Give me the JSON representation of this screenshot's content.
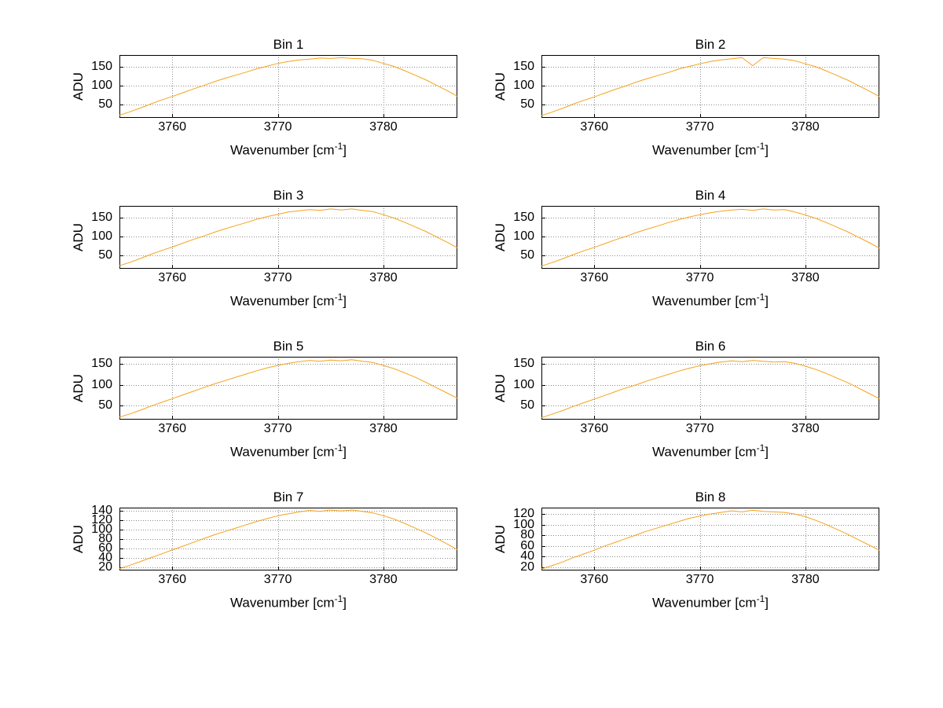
{
  "figure": {
    "background": "#ffffff",
    "curve_color": "#F5A21B",
    "axis_color": "#000000",
    "grid_color": "#8a8a8a",
    "ylabel": "ADU",
    "xlabel_prefix": "Wavenumber [cm",
    "xlabel_sup": "-1",
    "xlabel_suffix": "]"
  },
  "chart_data": [
    {
      "type": "line",
      "title": "Bin 1",
      "xlabel": "Wavenumber [cm⁻¹]",
      "ylabel": "ADU",
      "xlim": [
        3755,
        3787
      ],
      "ylim": [
        15,
        180
      ],
      "xticks": [
        3760,
        3770,
        3780
      ],
      "yticks": [
        50,
        100,
        150
      ],
      "grid": true,
      "x": [
        3755,
        3756,
        3757,
        3758,
        3759,
        3760,
        3761,
        3762,
        3763,
        3764,
        3765,
        3766,
        3767,
        3768,
        3769,
        3770,
        3771,
        3772,
        3773,
        3774,
        3775,
        3776,
        3777,
        3778,
        3779,
        3780,
        3781,
        3782,
        3783,
        3784,
        3785,
        3786,
        3787
      ],
      "values": [
        22,
        31,
        41,
        52,
        62,
        71,
        81,
        91,
        100,
        110,
        119,
        127,
        135,
        144,
        151,
        158,
        163,
        167,
        169,
        172,
        171,
        173,
        171,
        170,
        166,
        158,
        150,
        139,
        127,
        115,
        101,
        87,
        72
      ]
    },
    {
      "type": "line",
      "title": "Bin 2",
      "xlabel": "Wavenumber [cm⁻¹]",
      "ylabel": "ADU",
      "xlim": [
        3755,
        3787
      ],
      "ylim": [
        15,
        180
      ],
      "xticks": [
        3760,
        3770,
        3780
      ],
      "yticks": [
        50,
        100,
        150
      ],
      "grid": true,
      "x": [
        3755,
        3756,
        3757,
        3758,
        3759,
        3760,
        3761,
        3762,
        3763,
        3764,
        3765,
        3766,
        3767,
        3768,
        3769,
        3770,
        3771,
        3772,
        3773,
        3774,
        3775,
        3776,
        3777,
        3778,
        3779,
        3780,
        3781,
        3782,
        3783,
        3784,
        3785,
        3786,
        3787
      ],
      "values": [
        21,
        30,
        40,
        51,
        61,
        70,
        80,
        90,
        99,
        109,
        118,
        126,
        134,
        143,
        150,
        157,
        163,
        167,
        170,
        173,
        152,
        173,
        171,
        169,
        165,
        157,
        149,
        138,
        126,
        114,
        100,
        86,
        71
      ]
    },
    {
      "type": "line",
      "title": "Bin 3",
      "xlabel": "Wavenumber [cm⁻¹]",
      "ylabel": "ADU",
      "xlim": [
        3755,
        3787
      ],
      "ylim": [
        15,
        180
      ],
      "xticks": [
        3760,
        3770,
        3780
      ],
      "yticks": [
        50,
        100,
        150
      ],
      "grid": true,
      "x": [
        3755,
        3756,
        3757,
        3758,
        3759,
        3760,
        3761,
        3762,
        3763,
        3764,
        3765,
        3766,
        3767,
        3768,
        3769,
        3770,
        3771,
        3772,
        3773,
        3774,
        3775,
        3776,
        3777,
        3778,
        3779,
        3780,
        3781,
        3782,
        3783,
        3784,
        3785,
        3786,
        3787
      ],
      "values": [
        23,
        32,
        42,
        53,
        63,
        72,
        82,
        92,
        101,
        111,
        120,
        128,
        136,
        145,
        152,
        158,
        164,
        167,
        170,
        168,
        172,
        169,
        172,
        168,
        165,
        157,
        148,
        137,
        125,
        113,
        99,
        85,
        70
      ]
    },
    {
      "type": "line",
      "title": "Bin 4",
      "xlabel": "Wavenumber [cm⁻¹]",
      "ylabel": "ADU",
      "xlim": [
        3755,
        3787
      ],
      "ylim": [
        15,
        180
      ],
      "xticks": [
        3760,
        3770,
        3780
      ],
      "yticks": [
        50,
        100,
        150
      ],
      "grid": true,
      "x": [
        3755,
        3756,
        3757,
        3758,
        3759,
        3760,
        3761,
        3762,
        3763,
        3764,
        3765,
        3766,
        3767,
        3768,
        3769,
        3770,
        3771,
        3772,
        3773,
        3774,
        3775,
        3776,
        3777,
        3778,
        3779,
        3780,
        3781,
        3782,
        3783,
        3784,
        3785,
        3786,
        3787
      ],
      "values": [
        22,
        31,
        41,
        52,
        62,
        71,
        81,
        91,
        100,
        110,
        119,
        127,
        136,
        144,
        151,
        157,
        162,
        166,
        169,
        171,
        168,
        172,
        169,
        170,
        164,
        156,
        147,
        136,
        124,
        112,
        98,
        84,
        69
      ]
    },
    {
      "type": "line",
      "title": "Bin 5",
      "xlabel": "Wavenumber [cm⁻¹]",
      "ylabel": "ADU",
      "xlim": [
        3755,
        3787
      ],
      "ylim": [
        15,
        168
      ],
      "xticks": [
        3760,
        3770,
        3780
      ],
      "yticks": [
        50,
        100,
        150
      ],
      "grid": true,
      "x": [
        3755,
        3756,
        3757,
        3758,
        3759,
        3760,
        3761,
        3762,
        3763,
        3764,
        3765,
        3766,
        3767,
        3768,
        3769,
        3770,
        3771,
        3772,
        3773,
        3774,
        3775,
        3776,
        3777,
        3778,
        3779,
        3780,
        3781,
        3782,
        3783,
        3784,
        3785,
        3786,
        3787
      ],
      "values": [
        21,
        29,
        38,
        48,
        57,
        66,
        75,
        84,
        93,
        102,
        110,
        118,
        126,
        134,
        141,
        147,
        152,
        156,
        159,
        157,
        160,
        158,
        161,
        157,
        154,
        147,
        139,
        129,
        118,
        106,
        93,
        80,
        67
      ]
    },
    {
      "type": "line",
      "title": "Bin 6",
      "xlabel": "Wavenumber [cm⁻¹]",
      "ylabel": "ADU",
      "xlim": [
        3755,
        3787
      ],
      "ylim": [
        15,
        168
      ],
      "xticks": [
        3760,
        3770,
        3780
      ],
      "yticks": [
        50,
        100,
        150
      ],
      "grid": true,
      "x": [
        3755,
        3756,
        3757,
        3758,
        3759,
        3760,
        3761,
        3762,
        3763,
        3764,
        3765,
        3766,
        3767,
        3768,
        3769,
        3770,
        3771,
        3772,
        3773,
        3774,
        3775,
        3776,
        3777,
        3778,
        3779,
        3780,
        3781,
        3782,
        3783,
        3784,
        3785,
        3786,
        3787
      ],
      "values": [
        20,
        28,
        37,
        47,
        56,
        65,
        74,
        83,
        92,
        100,
        109,
        117,
        125,
        133,
        140,
        146,
        151,
        155,
        158,
        156,
        159,
        157,
        155,
        156,
        152,
        145,
        137,
        127,
        116,
        105,
        92,
        79,
        66
      ]
    },
    {
      "type": "line",
      "title": "Bin 7",
      "xlabel": "Wavenumber [cm⁻¹]",
      "ylabel": "ADU",
      "xlim": [
        3755,
        3787
      ],
      "ylim": [
        14,
        146
      ],
      "xticks": [
        3760,
        3770,
        3780
      ],
      "yticks": [
        20,
        40,
        60,
        80,
        100,
        120,
        140
      ],
      "grid": true,
      "x": [
        3755,
        3756,
        3757,
        3758,
        3759,
        3760,
        3761,
        3762,
        3763,
        3764,
        3765,
        3766,
        3767,
        3768,
        3769,
        3770,
        3771,
        3772,
        3773,
        3774,
        3775,
        3776,
        3777,
        3778,
        3779,
        3780,
        3781,
        3782,
        3783,
        3784,
        3785,
        3786,
        3787
      ],
      "values": [
        18,
        25,
        33,
        41,
        49,
        57,
        65,
        73,
        81,
        89,
        96,
        103,
        110,
        117,
        123,
        129,
        133,
        137,
        140,
        138,
        141,
        139,
        141,
        138,
        135,
        129,
        122,
        113,
        103,
        93,
        82,
        70,
        58
      ]
    },
    {
      "type": "line",
      "title": "Bin 8",
      "xlabel": "Wavenumber [cm⁻¹]",
      "ylabel": "ADU",
      "xlim": [
        3755,
        3787
      ],
      "ylim": [
        14,
        132
      ],
      "xticks": [
        3760,
        3770,
        3780
      ],
      "yticks": [
        20,
        40,
        60,
        80,
        100,
        120
      ],
      "grid": true,
      "x": [
        3755,
        3756,
        3757,
        3758,
        3759,
        3760,
        3761,
        3762,
        3763,
        3764,
        3765,
        3766,
        3767,
        3768,
        3769,
        3770,
        3771,
        3772,
        3773,
        3774,
        3775,
        3776,
        3777,
        3778,
        3779,
        3780,
        3781,
        3782,
        3783,
        3784,
        3785,
        3786,
        3787
      ],
      "values": [
        17,
        23,
        30,
        38,
        45,
        52,
        60,
        67,
        74,
        81,
        88,
        94,
        100,
        106,
        112,
        116,
        120,
        123,
        126,
        124,
        127,
        125,
        124,
        123,
        120,
        115,
        108,
        100,
        91,
        82,
        72,
        62,
        52
      ]
    }
  ]
}
